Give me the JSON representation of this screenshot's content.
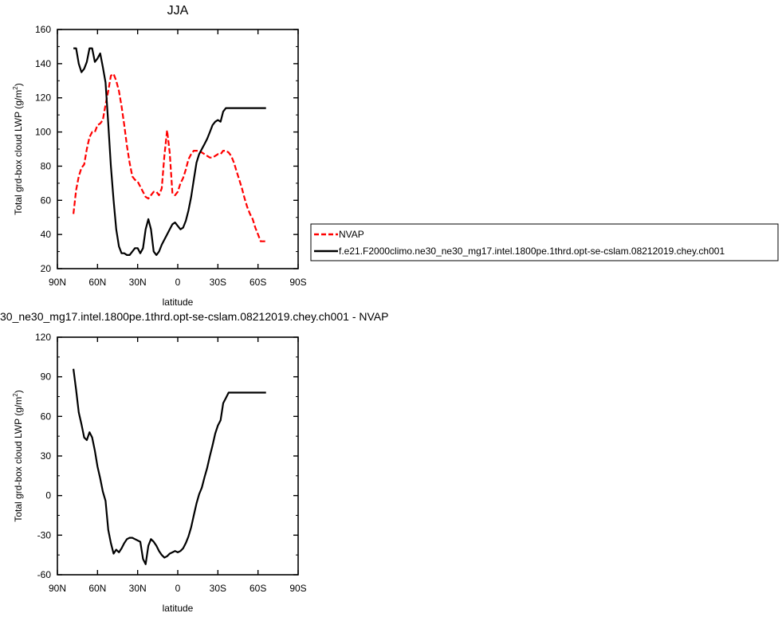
{
  "chart_data": [
    {
      "type": "line",
      "title": "JJA",
      "xlabel": "latitude",
      "ylabel": "Total grd-box cloud LWP (g/m²)",
      "ylabel_main": "Total grd-box cloud LWP (g/m",
      "ylabel_sup": "2",
      "ylabel_tail": ")",
      "xlim": [
        90,
        -90
      ],
      "ylim": [
        20,
        160
      ],
      "xticks": [
        90,
        60,
        30,
        0,
        -30,
        -60,
        -90
      ],
      "xtick_labels": [
        "90N",
        "60N",
        "30N",
        "0",
        "30S",
        "60S",
        "90S"
      ],
      "yticks": [
        20,
        40,
        60,
        80,
        100,
        120,
        140,
        160
      ],
      "ytick_labels": [
        "20",
        "40",
        "60",
        "80",
        "100",
        "120",
        "140",
        "160"
      ],
      "legend": {
        "placement": "right",
        "entries": [
          "NVAP",
          "f.e21.F2000climo.ne30_ne30_mg17.intel.1800pe.1thrd.opt-se-cslam.08212019.chey.ch001"
        ]
      },
      "series": [
        {
          "name": "NVAP",
          "color": "#ff0000",
          "dash": "dashed",
          "x": [
            78,
            76,
            74,
            72,
            70,
            68,
            66,
            64,
            62,
            60,
            58,
            56,
            54,
            52,
            50,
            48,
            46,
            44,
            42,
            40,
            38,
            36,
            34,
            32,
            30,
            28,
            26,
            24,
            22,
            20,
            18,
            16,
            14,
            12,
            10,
            8,
            6,
            4,
            2,
            0,
            -2,
            -4,
            -6,
            -8,
            -10,
            -12,
            -14,
            -16,
            -18,
            -20,
            -22,
            -24,
            -26,
            -28,
            -30,
            -32,
            -34,
            -36,
            -38,
            -40,
            -42,
            -44,
            -46,
            -48,
            -50,
            -52,
            -54,
            -56,
            -58,
            -60,
            -62,
            -64,
            -66
          ],
          "y": [
            52,
            66,
            74,
            79,
            81,
            90,
            97,
            100,
            100,
            104,
            105,
            107,
            116,
            124,
            133,
            134,
            130,
            124,
            115,
            104,
            92,
            82,
            74,
            72,
            71,
            68,
            65,
            62,
            61,
            63,
            65,
            65,
            63,
            67,
            86,
            101,
            88,
            64,
            63,
            65,
            70,
            73,
            78,
            84,
            87,
            89,
            89,
            89,
            88,
            87,
            86,
            85,
            85,
            86,
            87,
            87,
            89,
            89,
            88,
            86,
            82,
            77,
            72,
            67,
            61,
            56,
            52,
            49,
            44,
            40,
            36,
            36,
            36
          ],
          "line_end": -66
        },
        {
          "name": "f.e21.F2000climo.ne30_ne30_mg17.intel.1800pe.1thrd.opt-se-cslam.08212019.chey.ch001",
          "color": "#000000",
          "dash": "solid",
          "x": [
            78,
            76,
            74,
            72,
            70,
            68,
            66,
            64,
            62,
            60,
            58,
            56,
            54,
            52,
            50,
            48,
            46,
            44,
            42,
            40,
            38,
            36,
            34,
            32,
            30,
            28,
            26,
            24,
            22,
            20,
            18,
            16,
            14,
            12,
            10,
            8,
            6,
            4,
            2,
            0,
            -2,
            -4,
            -6,
            -8,
            -10,
            -12,
            -14,
            -16,
            -18,
            -20,
            -22,
            -24,
            -26,
            -28,
            -30,
            -32,
            -34,
            -36,
            -38,
            -40,
            -42,
            -44,
            -46,
            -48,
            -50,
            -52,
            -54,
            -56,
            -58,
            -60,
            -62,
            -64,
            -66
          ],
          "y": [
            149,
            149,
            140,
            135,
            137,
            141,
            149,
            149,
            141,
            143,
            146,
            138,
            129,
            105,
            80,
            60,
            43,
            33,
            29,
            29,
            28,
            28,
            30,
            32,
            32,
            29,
            32,
            43,
            49,
            43,
            30,
            28,
            30,
            34,
            37,
            40,
            43,
            46,
            47,
            45,
            43,
            44,
            48,
            54,
            62,
            72,
            82,
            87,
            90,
            93,
            96,
            100,
            104,
            106,
            107,
            106,
            112,
            114,
            114,
            114,
            114,
            114,
            114,
            114,
            114,
            114,
            114,
            114,
            114,
            114,
            114,
            114,
            114
          ],
          "line_end": -66
        }
      ]
    },
    {
      "type": "line",
      "title": "30_ne30_mg17.intel.1800pe.1thrd.opt-se-cslam.08212019.chey.ch001 - NVAP",
      "xlabel": "latitude",
      "ylabel": "Total grd-box cloud LWP (g/m²)",
      "ylabel_main": "Total grd-box cloud LWP (g/m",
      "ylabel_sup": "2",
      "ylabel_tail": ")",
      "xlim": [
        90,
        -90
      ],
      "ylim": [
        -60,
        120
      ],
      "xticks": [
        90,
        60,
        30,
        0,
        -30,
        -60,
        -90
      ],
      "xtick_labels": [
        "90N",
        "60N",
        "30N",
        "0",
        "30S",
        "60S",
        "90S"
      ],
      "yticks": [
        -60,
        -30,
        0,
        30,
        60,
        90,
        120
      ],
      "ytick_labels": [
        "-60",
        "-30",
        "0",
        "30",
        "60",
        "90",
        "120"
      ],
      "series": [
        {
          "color": "#000000",
          "dash": "solid",
          "x": [
            78,
            76,
            74,
            72,
            70,
            68,
            66,
            64,
            62,
            60,
            58,
            56,
            54,
            52,
            50,
            48,
            46,
            44,
            42,
            40,
            38,
            36,
            34,
            32,
            30,
            28,
            26,
            24,
            22,
            20,
            18,
            16,
            14,
            12,
            10,
            8,
            6,
            4,
            2,
            0,
            -2,
            -4,
            -6,
            -8,
            -10,
            -12,
            -14,
            -16,
            -18,
            -20,
            -22,
            -24,
            -26,
            -28,
            -30,
            -32,
            -34,
            -36,
            -38,
            -40,
            -42,
            -44,
            -46,
            -48,
            -50,
            -52,
            -54,
            -56,
            -58,
            -60,
            -62,
            -64,
            -66
          ],
          "y": [
            96,
            80,
            63,
            54,
            44,
            42,
            48,
            44,
            34,
            22,
            13,
            3,
            -4,
            -26,
            -36,
            -44,
            -41,
            -43,
            -40,
            -36,
            -33,
            -32,
            -32,
            -33,
            -34,
            -35,
            -48,
            -52,
            -38,
            -33,
            -35,
            -38,
            -42,
            -45,
            -47,
            -46,
            -44,
            -43,
            -42,
            -43,
            -42,
            -40,
            -36,
            -31,
            -24,
            -15,
            -6,
            1,
            6,
            14,
            21,
            30,
            38,
            47,
            53,
            57,
            70,
            74,
            78,
            78,
            78,
            78,
            78,
            78,
            78,
            78,
            78,
            78,
            78,
            78,
            78,
            78,
            78
          ],
          "line_end": -66
        }
      ]
    }
  ]
}
